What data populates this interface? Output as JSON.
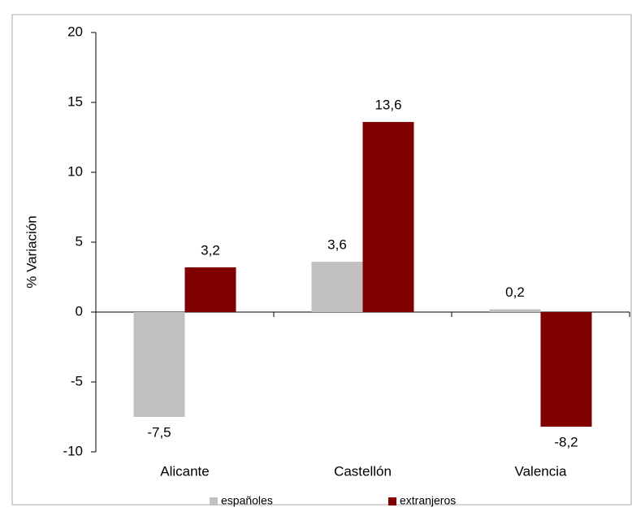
{
  "chart_data": {
    "type": "bar",
    "y_label": "% Variación",
    "categories": [
      "Alicante",
      "Castellón",
      "Valencia"
    ],
    "series": [
      {
        "name": "españoles",
        "color": "#c0c0c0",
        "values": [
          -7.5,
          3.6,
          0.2
        ],
        "value_labels": [
          "-7,5",
          "3,6",
          "0,2"
        ]
      },
      {
        "name": "extranjeros",
        "color": "#800000",
        "values": [
          3.2,
          13.6,
          -8.2
        ],
        "value_labels": [
          "3,2",
          "13,6",
          "-8,2"
        ]
      }
    ],
    "ylim": [
      -10,
      20
    ],
    "yticks": [
      -10,
      -5,
      0,
      5,
      10,
      15,
      20
    ],
    "grid": false,
    "legend": "bottom"
  }
}
